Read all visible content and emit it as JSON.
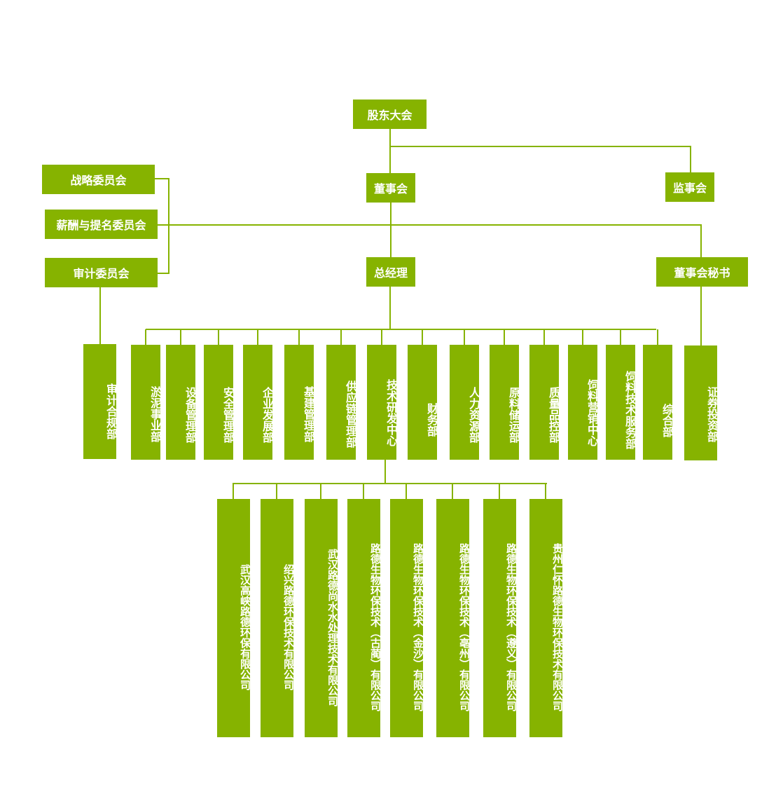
{
  "top": {
    "shareholders": "股东大会",
    "board": "董事会",
    "supervisors": "监事会",
    "gm": "总经理",
    "secretary": "董事会秘书"
  },
  "committees": [
    "战略委员会",
    "薪酬与提名委员会",
    "审计委员会"
  ],
  "audit_dept": "审计合规部",
  "departments": [
    "淤泥事业部",
    "设备管理部",
    "安全管理部",
    "企业发展部",
    "基建管理部",
    "供应链管理部",
    "技术研发中心",
    "财务部",
    "人力资源部",
    "原料储运部",
    "质量品控部",
    "饲料营销中心",
    "饲料技术服务部",
    "综合部"
  ],
  "securities_dept": "证券投资部",
  "subsidiaries": [
    "武汉高峡路德环保有限公司",
    "绍兴路德环保技术有限公司",
    "武汉路德尚水水处理技术有限公司",
    "路德生物环保技术（古蔺）有限公司",
    "路德生物环保技术（金沙）有限公司",
    "路德生物环保技术（亳州）有限公司",
    "路德生物环保技术（遵义）有限公司",
    "贵州仁怀路德生物环保技术有限公司"
  ],
  "colors": {
    "box": "#86b300",
    "text": "#ffffff"
  }
}
